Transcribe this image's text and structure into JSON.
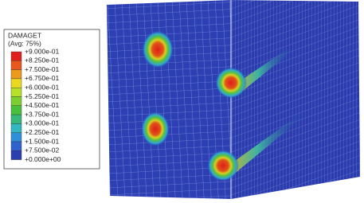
{
  "legend": {
    "title": "DAMAGET",
    "subtitle": "(Avg: 75%)",
    "labels": [
      "+9.000e-01",
      "+8.250e-01",
      "+7.500e-01",
      "+6.750e-01",
      "+6.000e-01",
      "+5.250e-01",
      "+4.500e-01",
      "+3.750e-01",
      "+3.000e-01",
      "+2.250e-01",
      "+1.500e-01",
      "+7.500e-02",
      "+0.000e+00"
    ],
    "colors": [
      "#e0201c",
      "#e8581c",
      "#ec9a1e",
      "#e8d820",
      "#b8e02a",
      "#7ccf2e",
      "#48c03c",
      "#36b87a",
      "#32b6c0",
      "#2f8fd8",
      "#2f62cc",
      "#2a3fb0"
    ]
  }
}
